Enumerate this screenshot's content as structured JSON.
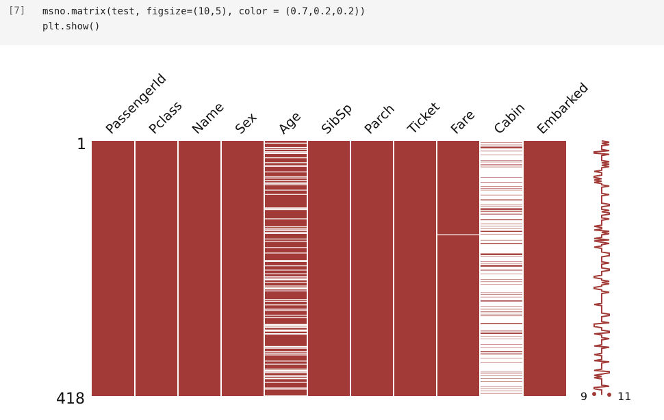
{
  "cell": {
    "prompt": "[7]",
    "code_line1": "msno.matrix(test, figsize=(10,5), color = (0.7,0.2,0.2))",
    "code_line2": "plt.show()"
  },
  "colors": {
    "bar": "#a23b37",
    "background": "#ffffff",
    "cell_bg": "#f5f5f5"
  },
  "chart_data": {
    "type": "heatmap",
    "title": "",
    "columns": [
      "PassengerId",
      "Pclass",
      "Name",
      "Sex",
      "Age",
      "SibSp",
      "Parch",
      "Ticket",
      "Fare",
      "Cabin",
      "Embarked"
    ],
    "n_rows": 418,
    "y_ticks": [
      "1",
      "418"
    ],
    "missing_summary": {
      "PassengerId": 0,
      "Pclass": 0,
      "Name": 0,
      "Sex": 0,
      "Age": 86,
      "SibSp": 0,
      "Parch": 0,
      "Ticket": 0,
      "Fare": 1,
      "Cabin": 327,
      "Embarked": 0
    },
    "fare_missing_row": 153,
    "sparkline": {
      "min_label": "9",
      "max_label": "11",
      "min_value": 9,
      "max_value": 11
    }
  }
}
